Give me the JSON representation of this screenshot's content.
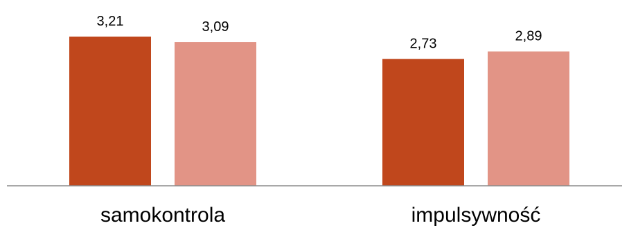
{
  "chart_data": {
    "type": "bar",
    "title": "",
    "xlabel": "",
    "ylabel": "",
    "categories": [
      "samokontrola",
      "impulsywność"
    ],
    "series": [
      {
        "values": [
          3.21,
          2.73
        ],
        "labels": [
          "3,21",
          "2,73"
        ],
        "color": "#c0471c"
      },
      {
        "values": [
          3.09,
          2.89
        ],
        "labels": [
          "3,09",
          "2,89"
        ],
        "color": "#e29486"
      }
    ],
    "ylim": [
      0,
      3.5
    ],
    "grid": false,
    "legend": "none",
    "axis_color": "#8c8c8c"
  }
}
